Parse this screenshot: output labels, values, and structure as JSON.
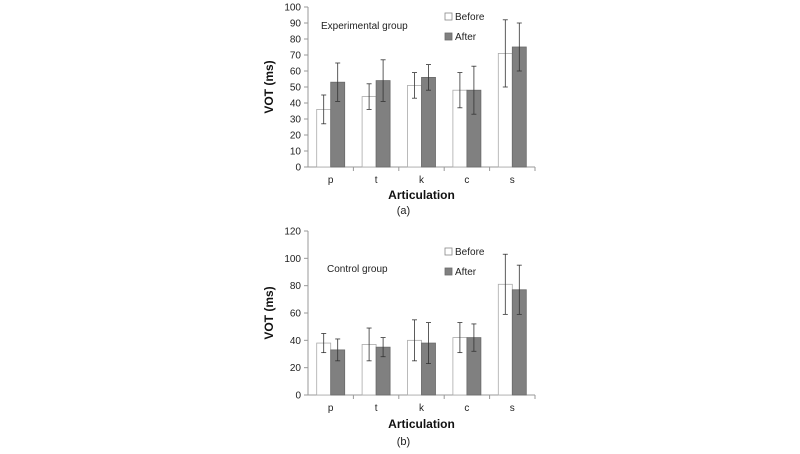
{
  "chart_data": [
    {
      "type": "bar",
      "panel_label": "(a)",
      "annotation": "Experimental group",
      "categories": [
        "p",
        "t",
        "k",
        "c",
        "s"
      ],
      "xlabel": "Articulation",
      "ylabel": "VOT (ms)",
      "ylim": [
        0,
        100
      ],
      "yticks": [
        0,
        10,
        20,
        30,
        40,
        50,
        60,
        70,
        80,
        90,
        100
      ],
      "legend_position": "top-center",
      "grid": false,
      "series": [
        {
          "name": "Before",
          "color": "#ffffff",
          "values": [
            36,
            44,
            51,
            48,
            71
          ],
          "error": [
            9,
            8,
            8,
            11,
            21
          ]
        },
        {
          "name": "After",
          "color": "#808080",
          "values": [
            53,
            54,
            56,
            48,
            75
          ],
          "error": [
            12,
            13,
            8,
            15,
            15
          ]
        }
      ]
    },
    {
      "type": "bar",
      "panel_label": "(b)",
      "annotation": "Control group",
      "categories": [
        "p",
        "t",
        "k",
        "c",
        "s"
      ],
      "xlabel": "Articulation",
      "ylabel": "VOT (ms)",
      "ylim": [
        0,
        120
      ],
      "yticks": [
        0,
        20,
        40,
        60,
        80,
        100,
        120
      ],
      "legend_position": "top-center",
      "grid": false,
      "series": [
        {
          "name": "Before",
          "color": "#ffffff",
          "values": [
            38,
            37,
            40,
            42,
            81
          ],
          "error": [
            7,
            12,
            15,
            11,
            22
          ]
        },
        {
          "name": "After",
          "color": "#808080",
          "values": [
            33,
            35,
            38,
            42,
            77
          ],
          "error": [
            8,
            7,
            15,
            10,
            18
          ]
        }
      ]
    }
  ]
}
